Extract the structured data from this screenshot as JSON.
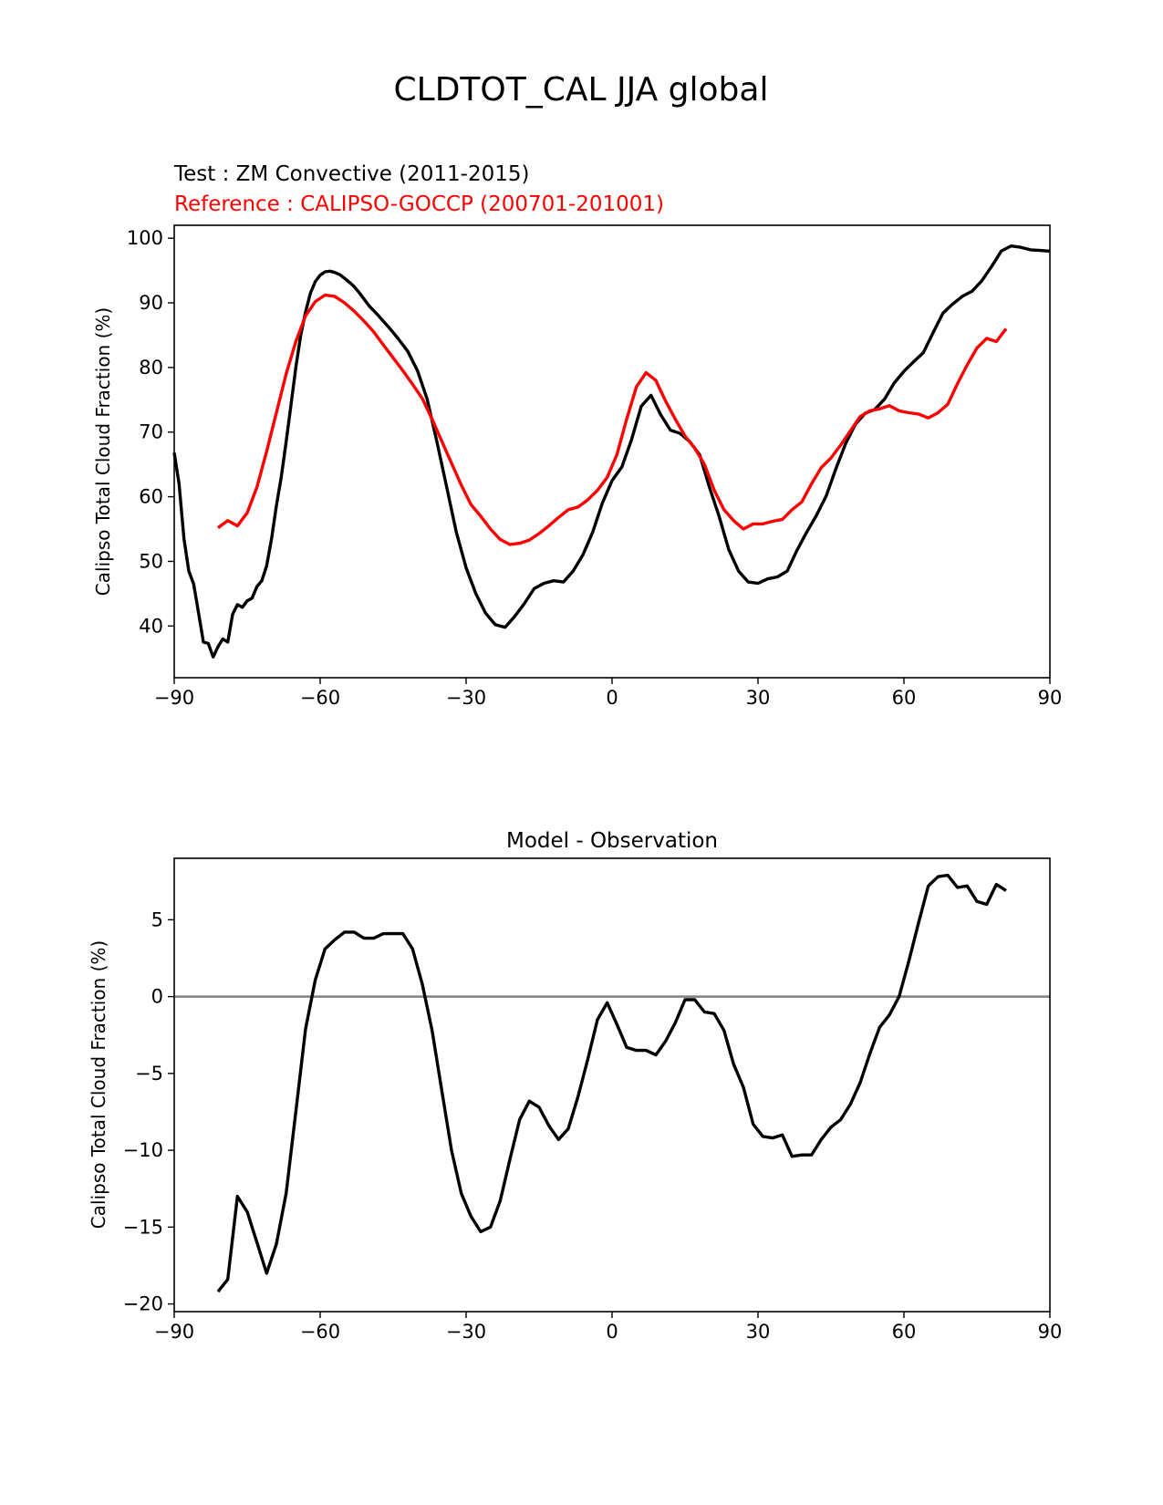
{
  "figure": {
    "title": "CLDTOT_CAL JJA global",
    "test_label": "Test : ZM Convective (2011-2015)",
    "reference_label": "Reference : CALIPSO-GOCCP (200701-201001)"
  },
  "colors": {
    "test": "#000000",
    "reference": "#ff0000",
    "diff": "#000000",
    "zero_line": "#808080"
  },
  "chart_data": [
    {
      "type": "line",
      "title": "",
      "xlabel": "",
      "ylabel": "Calipso Total Cloud Fraction (%)",
      "xlim": [
        -90,
        90
      ],
      "ylim": [
        32,
        102
      ],
      "xticks": [
        -90,
        -60,
        -30,
        0,
        30,
        60,
        90
      ],
      "xtick_labels": [
        "−90",
        "−60",
        "−30",
        "0",
        "30",
        "60",
        "90"
      ],
      "yticks": [
        40,
        50,
        60,
        70,
        80,
        90,
        100
      ],
      "ytick_labels": [
        "40",
        "50",
        "60",
        "70",
        "80",
        "90",
        "100"
      ],
      "grid": false,
      "series": [
        {
          "name": "Test : ZM Convective (2011-2015)",
          "color": "#000000",
          "x": [
            -90,
            -89,
            -88,
            -87,
            -86,
            -85,
            -84,
            -83,
            -82,
            -81,
            -80,
            -79,
            -78,
            -77,
            -76,
            -75,
            -74,
            -73,
            -72,
            -71,
            -70,
            -69,
            -68,
            -67,
            -66,
            -65,
            -64,
            -63,
            -62,
            -61,
            -60,
            -59,
            -58,
            -57,
            -56,
            -55,
            -54,
            -53,
            -52,
            -51,
            -50,
            -48,
            -46,
            -44,
            -42,
            -40,
            -38,
            -36,
            -34,
            -32,
            -30,
            -28,
            -26,
            -24,
            -22,
            -20,
            -18,
            -16,
            -14,
            -12,
            -10,
            -8,
            -6,
            -4,
            -2,
            0,
            2,
            4,
            6,
            8,
            10,
            12,
            14,
            16,
            18,
            20,
            22,
            24,
            26,
            28,
            30,
            32,
            34,
            36,
            38,
            40,
            42,
            44,
            46,
            48,
            50,
            52,
            54,
            56,
            58,
            60,
            62,
            64,
            66,
            68,
            70,
            72,
            74,
            76,
            78,
            80,
            82,
            84,
            86,
            88,
            90
          ],
          "values": [
            66.8,
            62,
            53.5,
            48.5,
            46.5,
            42,
            37.5,
            37.3,
            35.2,
            36.8,
            38,
            37.5,
            41.8,
            43.3,
            42.9,
            43.9,
            44.3,
            46.1,
            47,
            49.3,
            53.5,
            58.6,
            63,
            68.5,
            74.2,
            80,
            85,
            88.6,
            91.5,
            93.3,
            94.3,
            94.8,
            94.9,
            94.7,
            94.4,
            93.8,
            93.2,
            92.5,
            91.6,
            90.6,
            89.6,
            88,
            86.3,
            84.5,
            82.5,
            79.5,
            75.1,
            68.5,
            61.5,
            54.5,
            49,
            45,
            42,
            40.2,
            39.8,
            41.5,
            43.5,
            45.8,
            46.6,
            47,
            46.8,
            48.5,
            51,
            54.5,
            59,
            62.5,
            64.6,
            68.8,
            74,
            75.7,
            72.7,
            70.3,
            69.8,
            68.5,
            66.5,
            61.5,
            57,
            51.8,
            48.5,
            46.8,
            46.6,
            47.3,
            47.6,
            48.5,
            51.7,
            54.5,
            57.1,
            60.1,
            64.3,
            68.2,
            71.2,
            72.9,
            73.5,
            75.1,
            77.6,
            79.4,
            80.9,
            82.3,
            85.4,
            88.4,
            89.8,
            91,
            91.8,
            93.4,
            95.6,
            98,
            98.8,
            98.6,
            98.2,
            98.1,
            98
          ]
        },
        {
          "name": "Reference : CALIPSO-GOCCP (200701-201001)",
          "color": "#ff0000",
          "x": [
            -81,
            -79,
            -77,
            -75,
            -73,
            -71,
            -69,
            -67,
            -65,
            -63,
            -61,
            -59,
            -57,
            -55,
            -53,
            -51,
            -49,
            -47,
            -45,
            -43,
            -41,
            -39,
            -37,
            -35,
            -33,
            -31,
            -29,
            -27,
            -25,
            -23,
            -21,
            -19,
            -17,
            -15,
            -13,
            -11,
            -9,
            -7,
            -5,
            -3,
            -1,
            1,
            3,
            5,
            7,
            9,
            11,
            13,
            15,
            17,
            19,
            21,
            23,
            25,
            27,
            29,
            31,
            33,
            35,
            37,
            39,
            41,
            43,
            45,
            47,
            49,
            51,
            53,
            55,
            57,
            59,
            61,
            63,
            65,
            67,
            69,
            71,
            73,
            75,
            77,
            79,
            81
          ],
          "values": [
            55.2,
            56.3,
            55.5,
            57.5,
            61.5,
            67,
            73,
            79,
            84,
            88,
            90.2,
            91.2,
            91,
            90,
            88.7,
            87.2,
            85.5,
            83.5,
            81.5,
            79.5,
            77.4,
            75.2,
            72,
            68.6,
            65.2,
            61.8,
            58.8,
            57,
            55,
            53.4,
            52.6,
            52.8,
            53.3,
            54.3,
            55.5,
            56.8,
            58,
            58.4,
            59.5,
            61,
            63,
            66.5,
            72,
            77,
            79.2,
            78,
            74.8,
            72,
            69.4,
            67.5,
            65,
            61,
            58,
            56.3,
            55,
            55.8,
            55.8,
            56.2,
            56.5,
            58,
            59.2,
            62,
            64.5,
            66,
            68,
            70.2,
            72.4,
            73.3,
            73.6,
            74.1,
            73.3,
            73,
            72.8,
            72.2,
            73,
            74.3,
            77.5,
            80.4,
            83,
            84.5,
            84,
            86
          ]
        }
      ]
    },
    {
      "type": "line",
      "title": "Model - Observation",
      "xlabel": "",
      "ylabel": "Calipso Total Cloud Fraction (%)",
      "xlim": [
        -90,
        90
      ],
      "ylim": [
        -20.5,
        9
      ],
      "xticks": [
        -90,
        -60,
        -30,
        0,
        30,
        60,
        90
      ],
      "xtick_labels": [
        "−90",
        "−60",
        "−30",
        "0",
        "30",
        "60",
        "90"
      ],
      "yticks": [
        -20,
        -15,
        -10,
        -5,
        0,
        5
      ],
      "ytick_labels": [
        "−20",
        "−15",
        "−10",
        "−5",
        "0",
        "5"
      ],
      "grid": false,
      "reference_line": 0,
      "series": [
        {
          "name": "",
          "color": "#000000",
          "x": [
            -81,
            -79,
            -77,
            -75,
            -73,
            -71,
            -69,
            -67,
            -65,
            -63,
            -61,
            -59,
            -57,
            -55,
            -53,
            -51,
            -49,
            -47,
            -45,
            -43,
            -41,
            -39,
            -37,
            -35,
            -33,
            -31,
            -29,
            -27,
            -25,
            -23,
            -21,
            -19,
            -17,
            -15,
            -13,
            -11,
            -9,
            -7,
            -5,
            -3,
            -1,
            1,
            3,
            5,
            7,
            9,
            11,
            13,
            15,
            17,
            19,
            21,
            23,
            25,
            27,
            29,
            31,
            33,
            35,
            37,
            39,
            41,
            43,
            45,
            47,
            49,
            51,
            53,
            55,
            57,
            59,
            61,
            63,
            65,
            67,
            69,
            71,
            73,
            75,
            77,
            79,
            81
          ],
          "values": [
            -19.2,
            -18.4,
            -13,
            -14,
            -16,
            -18,
            -16.1,
            -12.8,
            -7.5,
            -2.1,
            1.1,
            3.1,
            3.7,
            4.2,
            4.2,
            3.8,
            3.8,
            4.1,
            4.1,
            4.1,
            3.1,
            0.8,
            -2.2,
            -6.1,
            -10,
            -12.8,
            -14.3,
            -15.3,
            -15,
            -13.3,
            -10.6,
            -8,
            -6.8,
            -7.2,
            -8.4,
            -9.3,
            -8.6,
            -6.5,
            -4.1,
            -1.5,
            -0.4,
            -1.8,
            -3.3,
            -3.5,
            -3.5,
            -3.8,
            -2.9,
            -1.7,
            -0.2,
            -0.2,
            -1,
            -1.1,
            -2.2,
            -4.4,
            -5.9,
            -8.3,
            -9.1,
            -9.2,
            -9,
            -10.4,
            -10.3,
            -10.3,
            -9.3,
            -8.5,
            -8,
            -7,
            -5.6,
            -3.7,
            -2,
            -1.2,
            0,
            2.3,
            4.8,
            7.2,
            7.8,
            7.9,
            7.1,
            7.2,
            6.2,
            6,
            7.3,
            6.9
          ]
        }
      ]
    }
  ]
}
